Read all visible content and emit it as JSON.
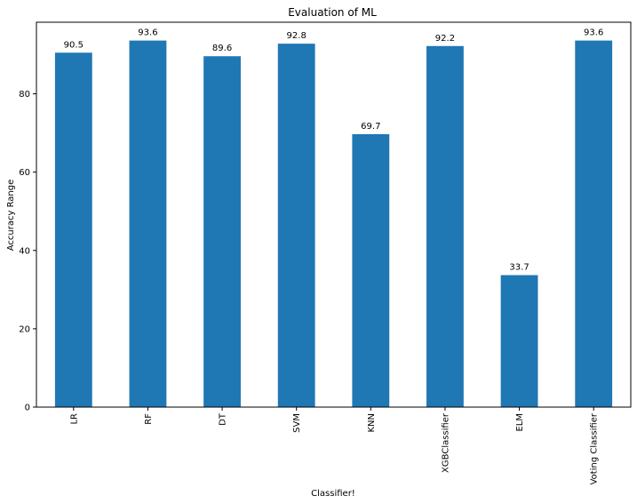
{
  "chart_data": {
    "type": "bar",
    "title": "Evaluation of ML",
    "xlabel": "Classifier!",
    "ylabel": "Accuracy Range",
    "categories": [
      "LR",
      "RF",
      "DT",
      "SVM",
      "KNN",
      "XGBClassifier",
      "ELM",
      "Voting Classifier"
    ],
    "values": [
      90.5,
      93.6,
      89.6,
      92.8,
      69.7,
      92.2,
      33.7,
      93.6
    ],
    "value_labels": [
      "90.5",
      "93.6",
      "89.6",
      "92.8",
      "69.7",
      "92.2",
      "33.7",
      "93.6"
    ],
    "ylim": [
      0,
      98.28
    ],
    "yticks": [
      0,
      20,
      40,
      60,
      80
    ],
    "grid": false,
    "legend": "none",
    "bar_color": "#1f77b4"
  }
}
